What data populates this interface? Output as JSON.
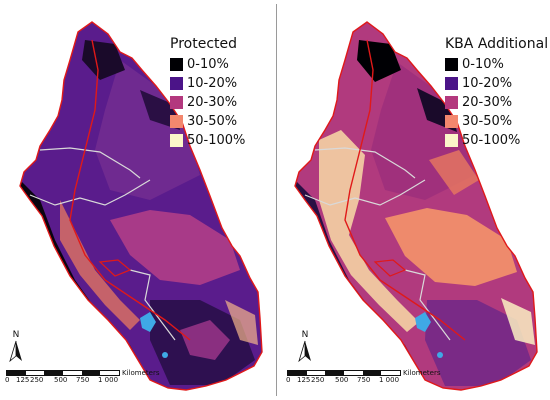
{
  "panels": [
    {
      "legend_title": "Protected",
      "legend": [
        {
          "label": "0-10%",
          "color": "#000004"
        },
        {
          "label": "10-20%",
          "color": "#4b1488"
        },
        {
          "label": "20-30%",
          "color": "#b3387e"
        },
        {
          "label": "30-50%",
          "color": "#f3876e"
        },
        {
          "label": "50-100%",
          "color": "#fbf6c9"
        }
      ]
    },
    {
      "legend_title": "KBA Additional",
      "legend": [
        {
          "label": "0-10%",
          "color": "#000004"
        },
        {
          "label": "10-20%",
          "color": "#4b1488"
        },
        {
          "label": "20-30%",
          "color": "#b3387e"
        },
        {
          "label": "30-50%",
          "color": "#f3876e"
        },
        {
          "label": "50-100%",
          "color": "#fbf6c9"
        }
      ]
    }
  ],
  "north_label": "N",
  "scale": {
    "ticks": [
      "0",
      "125",
      "250",
      "500",
      "750",
      "1 000"
    ],
    "unit": "Kilometers"
  },
  "colors": {
    "boundary": "#e01919",
    "country_border": "#d9d9d9",
    "water": "#3fa9e6"
  }
}
